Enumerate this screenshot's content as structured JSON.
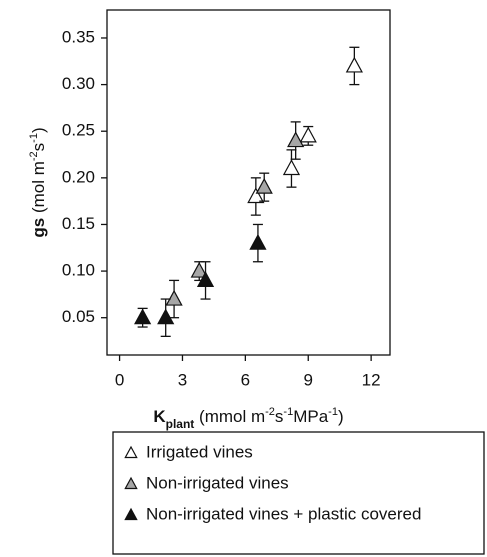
{
  "chart_data": {
    "type": "scatter",
    "x_label": [
      {
        "text": "K",
        "bold": true
      },
      {
        "text": "plant",
        "bold": true,
        "sub": true
      },
      {
        "text": " (mmol m"
      },
      {
        "text": "-2",
        "sup": true
      },
      {
        "text": "s"
      },
      {
        "text": "-1",
        "sup": true
      },
      {
        "text": "MPa"
      },
      {
        "text": "-1",
        "sup": true
      },
      {
        "text": ")"
      }
    ],
    "y_label": [
      {
        "text": "gs",
        "bold": true
      },
      {
        "text": " (mol m"
      },
      {
        "text": "-2",
        "sup": true
      },
      {
        "text": "s"
      },
      {
        "text": "-1",
        "sup": true
      },
      {
        "text": ")"
      }
    ],
    "xlim": [
      -0.6,
      12.9
    ],
    "ylim": [
      0.01,
      0.38
    ],
    "xticks": [
      0,
      3,
      6,
      9,
      12
    ],
    "yticks": [
      0.05,
      {
        "value": 0.1,
        "label": "0.10"
      },
      0.15,
      {
        "value": 0.2,
        "label": "0.20"
      },
      0.25,
      {
        "value": 0.3,
        "label": "0.30"
      },
      0.35
    ],
    "series": [
      {
        "name": "Irrigated vines",
        "color": "#ffffff",
        "x": [
          11.2,
          9.0,
          8.2,
          6.5
        ],
        "values": [
          0.32,
          0.245,
          0.21,
          0.18
        ],
        "errors": [
          0.02,
          0.01,
          0.02,
          0.02
        ]
      },
      {
        "name": "Non-irrigated vines",
        "color": "#a6a6a6",
        "x": [
          8.4,
          6.9,
          3.8,
          2.6
        ],
        "values": [
          0.24,
          0.19,
          0.1,
          0.07
        ],
        "errors": [
          0.02,
          0.015,
          0.01,
          0.02
        ]
      },
      {
        "name": "Non-irrigated vines + plastic covered",
        "color": "#111111",
        "x": [
          6.6,
          4.1,
          2.2,
          1.1
        ],
        "values": [
          0.13,
          0.09,
          0.05,
          0.05
        ],
        "errors": [
          0.02,
          0.02,
          0.02,
          0.01
        ]
      }
    ]
  }
}
